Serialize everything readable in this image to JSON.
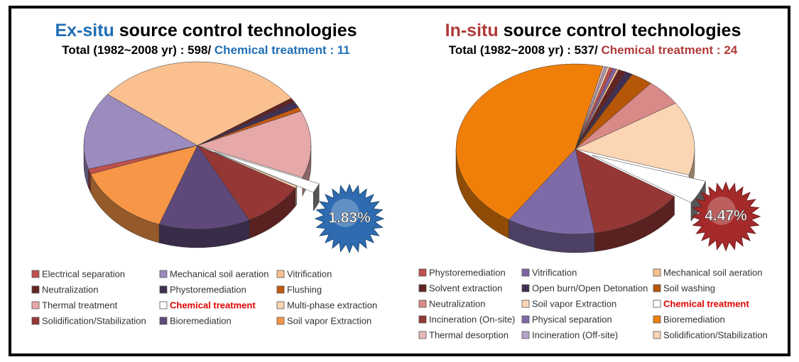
{
  "chart_data": [
    {
      "type": "pie",
      "title_highlight": "Ex-situ",
      "title": "source control technologies",
      "highlight_color": "#1f6fb5",
      "subtitle": "Total (1982~2008 yr) : 598/",
      "subtitle_highlight": "Chemical treatment : 11",
      "categories": [
        "Electrical separation",
        "Mechanical soil aeration",
        "Vitrification",
        "Neutralization",
        "Phystoremediation",
        "Flushing",
        "Thermal treatment",
        "Chemical treatment",
        "Multi-phase extraction",
        "Solidification/Stabilization",
        "Bioremediation",
        "Soil vapor Extraction"
      ],
      "values": [
        1,
        15,
        30,
        0.8,
        1.2,
        0.8,
        13,
        1.83,
        0.4,
        9,
        13,
        14
      ],
      "value_labels": [
        null,
        null,
        null,
        null,
        null,
        null,
        null,
        "1.83%",
        null,
        null,
        null,
        null
      ],
      "colors": [
        "#c0504d",
        "#9b8bbf",
        "#fac090",
        "#632523",
        "#403152",
        "#c55a11",
        "#e6a8a8",
        "#ffffff",
        "#fcd5b4",
        "#953735",
        "#5f497a",
        "#f79646"
      ],
      "burst_color": "#2e6bb0"
    },
    {
      "type": "pie",
      "title_highlight": "In-situ",
      "title": "source control technologies",
      "highlight_color": "#b03a3a",
      "subtitle": "Total (1982~2008 yr) : 537/",
      "subtitle_highlight": "Chemical treatment : 24",
      "categories": [
        "Phystoremediation",
        "Vitrification",
        "Mechanical soil aeration",
        "Solvent extraction",
        "Open burn/Open Detonation",
        "Soil washing",
        "Neutralization",
        "Soil vapor Extraction",
        "Chemical treatment",
        "Incineration (On-site)",
        "Physical separation",
        "Bioremediation",
        "Thermal desorption",
        "Incineration (Off-site)",
        "Solidification/Stabilization"
      ],
      "values": [
        0.5,
        0.5,
        0.3,
        1,
        1,
        3,
        5,
        14,
        4.47,
        13,
        12,
        44.33,
        0.3,
        0.3,
        0.3
      ],
      "value_labels": [
        null,
        null,
        null,
        null,
        null,
        null,
        null,
        null,
        "4.47%",
        null,
        null,
        null,
        null,
        null,
        null
      ],
      "colors": [
        "#c0504d",
        "#8064a2",
        "#fac090",
        "#632523",
        "#403152",
        "#b65708",
        "#d98a88",
        "#fcd5b4",
        "#ffffff",
        "#953735",
        "#7f6aa8",
        "#f07f0a",
        "#e6b9b8",
        "#b3a2c7",
        "#fbd4b4"
      ],
      "burst_color": "#a52a2a"
    }
  ]
}
